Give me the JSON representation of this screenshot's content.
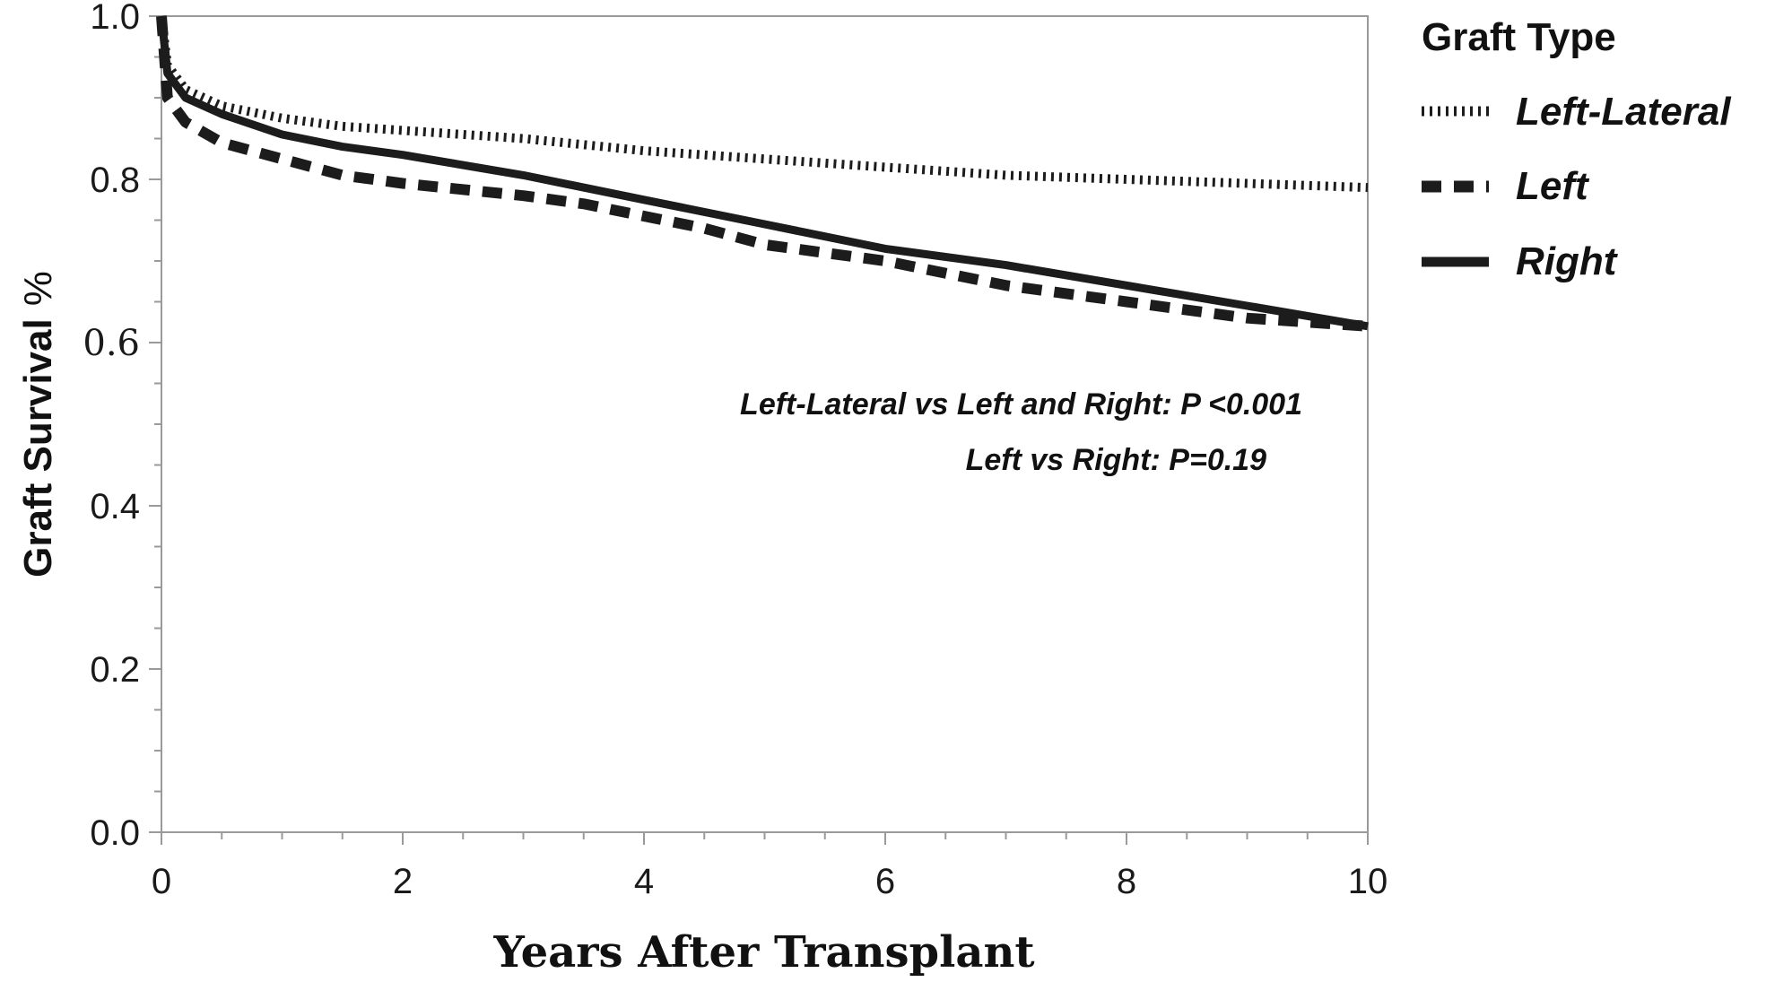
{
  "chart_data": {
    "type": "line",
    "title": "",
    "xlabel": "Years After Transplant",
    "ylabel": "Graft Survival",
    "ylabel_unit": "%",
    "xlim": [
      0,
      10
    ],
    "ylim": [
      0.0,
      1.0
    ],
    "x_ticks": [
      "0",
      "2",
      "4",
      "6",
      "8",
      "10"
    ],
    "y_ticks": [
      "0.0",
      "0.2",
      "0.4",
      "0.6",
      "0.8",
      "1.0"
    ],
    "grid": false,
    "legend": {
      "title": "Graft Type",
      "placement": "right-top",
      "entries": [
        "Left-Lateral",
        "Left",
        "Right"
      ]
    },
    "annotations": [
      "Left-Lateral vs Left and Right: P <0.001",
      "Left vs Right: P=0.19"
    ],
    "series": [
      {
        "name": "Left-Lateral",
        "style": "dotted",
        "x": [
          0,
          0.05,
          0.2,
          0.5,
          1,
          1.5,
          2,
          3,
          4,
          5,
          6,
          7,
          8,
          9,
          10
        ],
        "y": [
          1.0,
          0.94,
          0.91,
          0.89,
          0.875,
          0.865,
          0.86,
          0.85,
          0.835,
          0.825,
          0.815,
          0.805,
          0.8,
          0.795,
          0.79
        ]
      },
      {
        "name": "Left",
        "style": "dashed",
        "x": [
          0,
          0.05,
          0.2,
          0.5,
          1,
          1.5,
          2,
          3,
          3.5,
          4,
          4.5,
          5,
          6,
          7,
          8,
          9,
          10
        ],
        "y": [
          1.0,
          0.9,
          0.87,
          0.845,
          0.825,
          0.805,
          0.795,
          0.78,
          0.77,
          0.755,
          0.74,
          0.72,
          0.7,
          0.67,
          0.65,
          0.63,
          0.62
        ]
      },
      {
        "name": "Right",
        "style": "solid",
        "x": [
          0,
          0.05,
          0.2,
          0.5,
          1,
          1.5,
          2,
          3,
          4,
          5,
          6,
          7,
          8,
          9,
          10
        ],
        "y": [
          1.0,
          0.93,
          0.9,
          0.88,
          0.855,
          0.84,
          0.83,
          0.805,
          0.775,
          0.745,
          0.715,
          0.695,
          0.67,
          0.645,
          0.62
        ]
      }
    ]
  },
  "colors": {
    "line": "#1c1c1c",
    "axis": "#9a9a9a"
  }
}
